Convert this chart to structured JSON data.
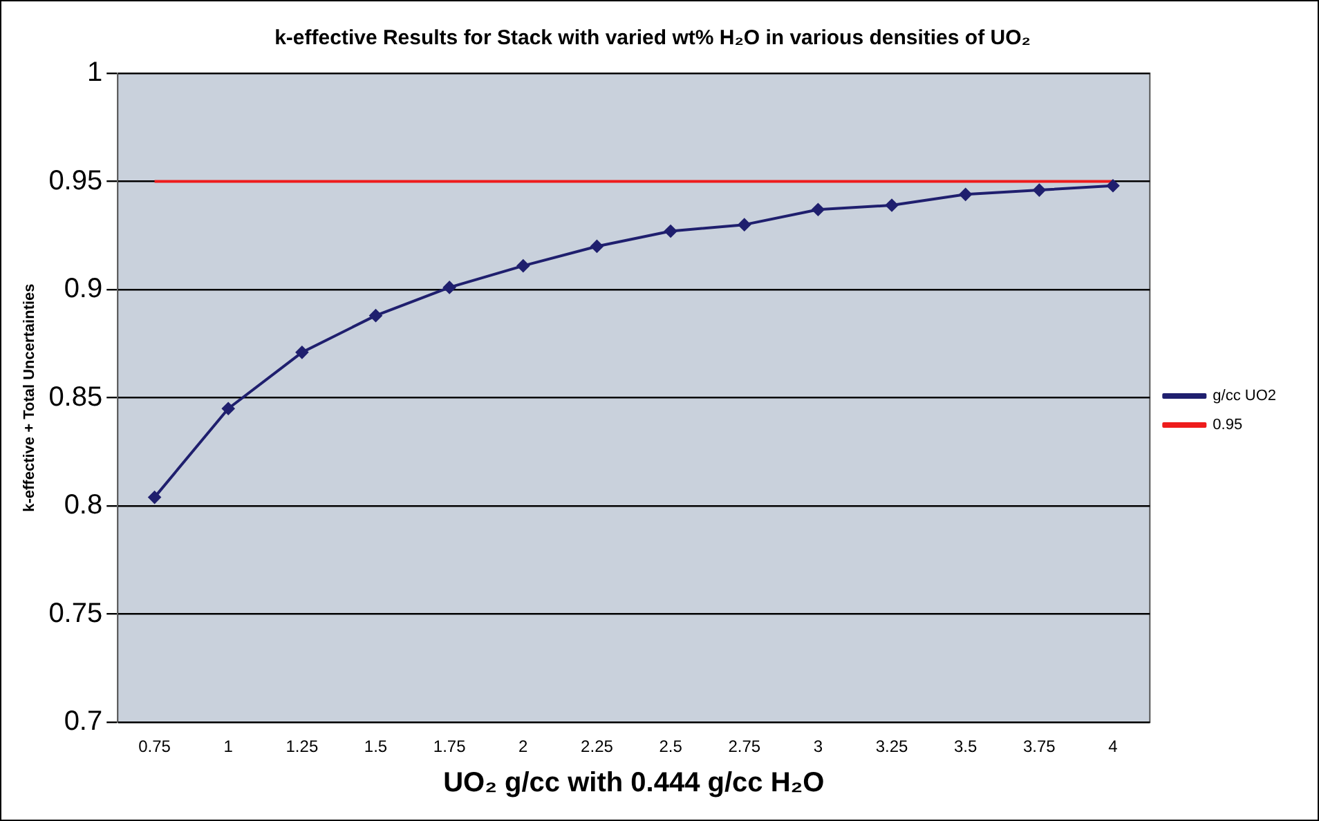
{
  "chart_data": {
    "type": "line",
    "title": "k-effective Results for Stack with varied wt% H₂O in various densities of UO₂",
    "xlabel": "UO₂ g/cc with 0.444 g/cc H₂O",
    "ylabel": "k-effective + Total Uncertainties",
    "categories": [
      "0.75",
      "1",
      "1.25",
      "1.5",
      "1.75",
      "2",
      "2.25",
      "2.5",
      "2.75",
      "3",
      "3.25",
      "3.5",
      "3.75",
      "4"
    ],
    "series": [
      {
        "name": "g/cc UO2",
        "color": "#1f1f6e",
        "marker": "diamond",
        "values": [
          0.804,
          0.845,
          0.871,
          0.888,
          0.901,
          0.911,
          0.92,
          0.927,
          0.93,
          0.937,
          0.939,
          0.944,
          0.946,
          0.948
        ]
      },
      {
        "name": "0.95",
        "color": "#ee1c1c",
        "marker": "none",
        "values": [
          0.95,
          0.95,
          0.95,
          0.95,
          0.95,
          0.95,
          0.95,
          0.95,
          0.95,
          0.95,
          0.95,
          0.95,
          0.95,
          0.95
        ]
      }
    ],
    "ylim": [
      0.7,
      1
    ],
    "yticks": [
      0.7,
      0.75,
      0.8,
      0.85,
      0.9,
      0.95,
      1
    ],
    "grid": "y",
    "legend": "right"
  }
}
